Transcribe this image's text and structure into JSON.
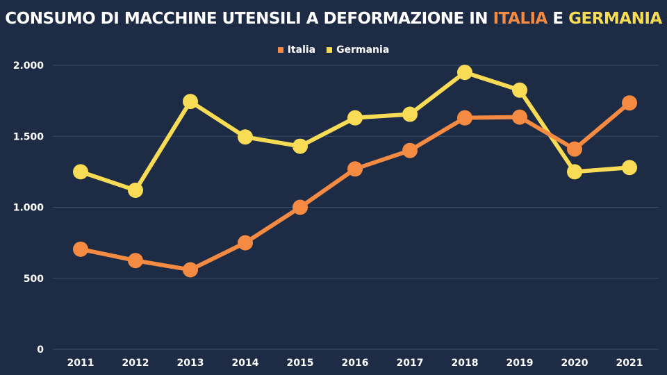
{
  "title": {
    "prefix": "CONSUMO DI MACCHINE UTENSILI A DEFORMAZIONE IN ",
    "italia": "ITALIA",
    "joiner": " E ",
    "germania": "GERMANIA"
  },
  "colors": {
    "background": "#1d2b45",
    "italia": "#f58a42",
    "germania": "#f8dc55",
    "grid": "#3d4c66",
    "text": "#ffffff"
  },
  "chart_data": {
    "type": "line",
    "x": [
      "2011",
      "2012",
      "2013",
      "2014",
      "2015",
      "2016",
      "2017",
      "2018",
      "2019",
      "2020",
      "2021"
    ],
    "ytick_labels": [
      "0",
      "500",
      "1.000",
      "1.500",
      "2.000"
    ],
    "yticks": [
      0,
      500,
      1000,
      1500,
      2000
    ],
    "ylim": [
      0,
      2000
    ],
    "grid": true,
    "legend_position": "top-center",
    "series": [
      {
        "name": "Italia",
        "color": "#f58a42",
        "values": [
          705,
          625,
          560,
          750,
          1000,
          1270,
          1400,
          1630,
          1635,
          1410,
          1735
        ]
      },
      {
        "name": "Germania",
        "color": "#f8dc55",
        "values": [
          1250,
          1120,
          1745,
          1495,
          1430,
          1630,
          1655,
          1950,
          1825,
          1250,
          1280
        ]
      }
    ]
  }
}
